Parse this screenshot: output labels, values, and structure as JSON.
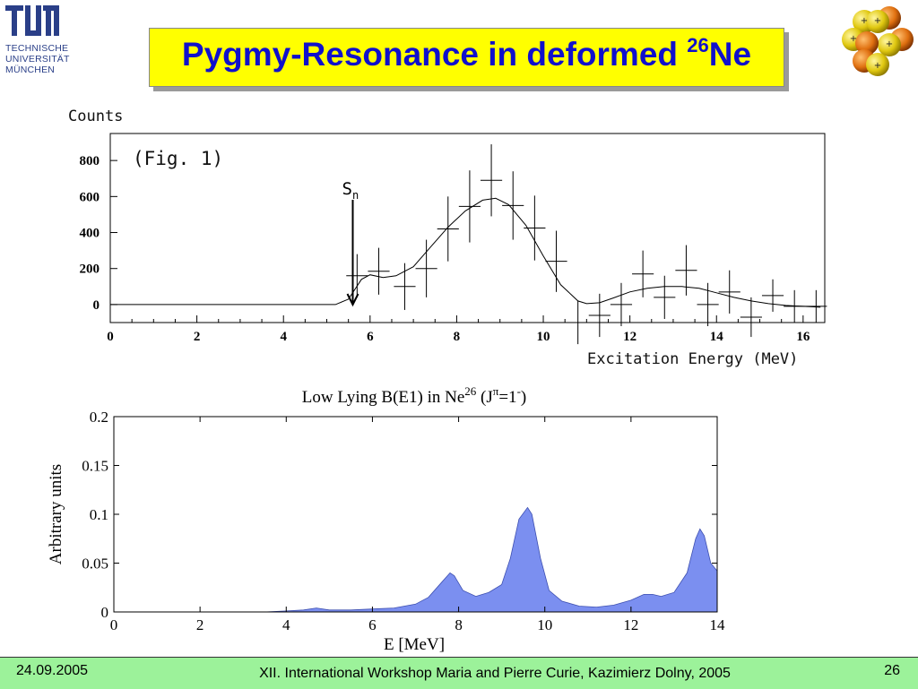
{
  "logo": {
    "lines": [
      "TECHNISCHE",
      "UNIVERSITÄT",
      "MÜNCHEN"
    ]
  },
  "title": {
    "text": "Pygmy-Resonance in deformed ",
    "superscript": "26",
    "suffix": "Ne"
  },
  "icons": {
    "logo": "tum-logo-icon",
    "nucleus": "nucleus-icon"
  },
  "colors": {
    "title_bg": "#ffff00",
    "title_text": "#1010cc",
    "fill": "#7b8ff0",
    "footer_bg": "#9cf29a"
  },
  "chart_data": [
    {
      "type": "scatter",
      "ylabel": "Counts",
      "xlabel": "Excitation Energy (MeV)",
      "annotation": "(Fig. 1)",
      "marker_label": {
        "text": "S",
        "subscript": "n",
        "x": 5.6
      },
      "xlim": [
        0,
        16.5
      ],
      "ylim": [
        -100,
        950
      ],
      "xticks": [
        0,
        2,
        4,
        6,
        8,
        10,
        12,
        14,
        16
      ],
      "yticks": [
        0,
        200,
        400,
        600,
        800
      ],
      "points": [
        {
          "x": 5.7,
          "y": 160,
          "err": 120
        },
        {
          "x": 6.2,
          "y": 185,
          "err": 130
        },
        {
          "x": 6.8,
          "y": 100,
          "err": 130
        },
        {
          "x": 7.3,
          "y": 200,
          "err": 160
        },
        {
          "x": 7.8,
          "y": 420,
          "err": 180
        },
        {
          "x": 8.3,
          "y": 545,
          "err": 200
        },
        {
          "x": 8.8,
          "y": 690,
          "err": 200
        },
        {
          "x": 9.3,
          "y": 550,
          "err": 190
        },
        {
          "x": 9.8,
          "y": 425,
          "err": 180
        },
        {
          "x": 10.3,
          "y": 240,
          "err": 170
        },
        {
          "x": 10.8,
          "y": -100,
          "err": 120
        },
        {
          "x": 11.3,
          "y": -60,
          "err": 120
        },
        {
          "x": 11.8,
          "y": 0,
          "err": 120
        },
        {
          "x": 12.3,
          "y": 170,
          "err": 130
        },
        {
          "x": 12.8,
          "y": 40,
          "err": 120
        },
        {
          "x": 13.3,
          "y": 190,
          "err": 140
        },
        {
          "x": 13.8,
          "y": 0,
          "err": 120
        },
        {
          "x": 14.3,
          "y": 70,
          "err": 120
        },
        {
          "x": 14.8,
          "y": -70,
          "err": 110
        },
        {
          "x": 15.3,
          "y": 50,
          "err": 90
        },
        {
          "x": 15.8,
          "y": -10,
          "err": 90
        },
        {
          "x": 16.3,
          "y": -10,
          "err": 90
        }
      ],
      "fit_curve": {
        "x": [
          0,
          4.8,
          5.2,
          5.5,
          5.8,
          6.0,
          6.3,
          6.6,
          7.0,
          7.4,
          7.8,
          8.2,
          8.6,
          8.9,
          9.2,
          9.6,
          10.0,
          10.4,
          10.8,
          11.0,
          11.3,
          11.6,
          12.0,
          12.4,
          12.8,
          13.2,
          13.6,
          14.0,
          14.4,
          14.8,
          15.2,
          15.6,
          16.0,
          16.4
        ],
        "y": [
          0,
          0,
          0,
          30,
          140,
          165,
          150,
          160,
          210,
          320,
          430,
          520,
          580,
          590,
          555,
          440,
          270,
          110,
          20,
          5,
          10,
          35,
          70,
          90,
          100,
          100,
          90,
          65,
          40,
          20,
          5,
          -5,
          -10,
          -15
        ]
      }
    },
    {
      "type": "area",
      "title": {
        "text": "Low Lying B(E1) in Ne",
        "sup": "26",
        "paren": "(J",
        "pi": "π",
        "eq": "=1",
        "minus": "-",
        "close": ")"
      },
      "xlabel": "E [MeV]",
      "ylabel": "Arbitrary units",
      "xlim": [
        0,
        14
      ],
      "ylim": [
        0,
        0.2
      ],
      "xticks": [
        0,
        2,
        4,
        6,
        8,
        10,
        12,
        14
      ],
      "yticks": [
        0,
        0.05,
        0.1,
        0.15,
        0.2
      ],
      "ytick_labels": [
        "0",
        "0.05",
        "0.1",
        "0.15",
        "0.2"
      ],
      "x": [
        0,
        3.5,
        4.0,
        4.4,
        4.7,
        5.0,
        5.5,
        6.0,
        6.5,
        7.0,
        7.3,
        7.6,
        7.8,
        7.9,
        8.1,
        8.4,
        8.7,
        9.0,
        9.2,
        9.4,
        9.6,
        9.7,
        9.9,
        10.1,
        10.4,
        10.8,
        11.2,
        11.6,
        12.0,
        12.3,
        12.5,
        12.7,
        13.0,
        13.3,
        13.5,
        13.6,
        13.7,
        13.85,
        14.0
      ],
      "y": [
        0,
        0,
        0.001,
        0.002,
        0.004,
        0.002,
        0.002,
        0.003,
        0.004,
        0.008,
        0.015,
        0.03,
        0.04,
        0.037,
        0.022,
        0.016,
        0.02,
        0.028,
        0.055,
        0.095,
        0.107,
        0.1,
        0.055,
        0.022,
        0.011,
        0.006,
        0.005,
        0.007,
        0.012,
        0.018,
        0.018,
        0.016,
        0.02,
        0.04,
        0.075,
        0.085,
        0.078,
        0.05,
        0.042
      ]
    }
  ],
  "footer": {
    "date": "24.09.2005",
    "event": "XII. International Workshop Maria and Pierre Curie, Kazimierz Dolny, 2005",
    "page": "26"
  }
}
